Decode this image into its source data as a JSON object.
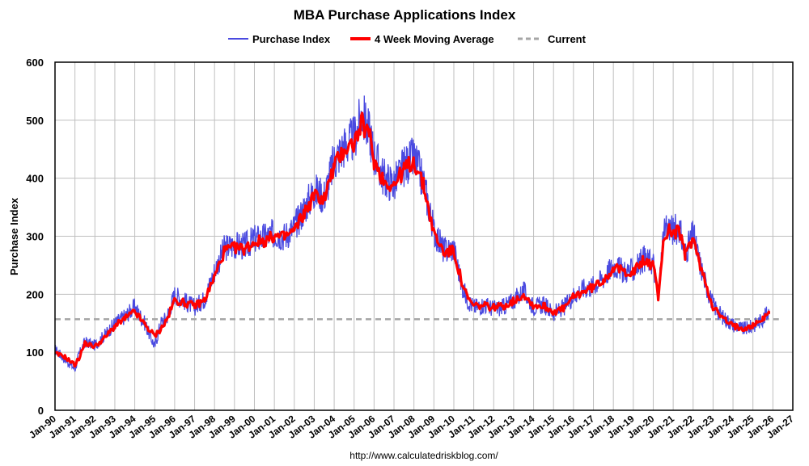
{
  "chart_data": {
    "type": "line",
    "title": "MBA Purchase Applications Index",
    "ylabel": "Purchase Index",
    "xlabel": "",
    "source": "http://www.calculatedriskblog.com/",
    "ylim": [
      0,
      600
    ],
    "yticks": [
      0,
      100,
      200,
      300,
      400,
      500,
      600
    ],
    "xlim": [
      1990,
      2027
    ],
    "xticks": [
      "Jan-90",
      "Jan-91",
      "Jan-92",
      "Jan-93",
      "Jan-94",
      "Jan-95",
      "Jan-96",
      "Jan-97",
      "Jan-98",
      "Jan-99",
      "Jan-00",
      "Jan-01",
      "Jan-02",
      "Jan-03",
      "Jan-04",
      "Jan-05",
      "Jan-06",
      "Jan-07",
      "Jan-08",
      "Jan-09",
      "Jan-10",
      "Jan-11",
      "Jan-12",
      "Jan-13",
      "Jan-14",
      "Jan-15",
      "Jan-16",
      "Jan-17",
      "Jan-18",
      "Jan-19",
      "Jan-20",
      "Jan-21",
      "Jan-22",
      "Jan-23",
      "Jan-24",
      "Jan-25",
      "Jan-26",
      "Jan-27"
    ],
    "grid": true,
    "legend_position": "top",
    "series": [
      {
        "name": "Purchase Index",
        "color": "#4a4ae0",
        "x": [
          1990.0,
          1990.5,
          1991.0,
          1991.2,
          1991.5,
          1992.0,
          1992.5,
          1993.0,
          1993.5,
          1994.0,
          1994.5,
          1995.0,
          1995.3,
          1995.6,
          1996.0,
          1996.5,
          1997.0,
          1997.5,
          1998.0,
          1998.5,
          1999.0,
          1999.5,
          2000.0,
          2000.5,
          2001.0,
          2001.5,
          2002.0,
          2002.5,
          2003.0,
          2003.5,
          2004.0,
          2004.5,
          2005.0,
          2005.4,
          2005.8,
          2006.0,
          2006.5,
          2007.0,
          2007.5,
          2008.0,
          2008.5,
          2009.0,
          2009.5,
          2010.0,
          2010.4,
          2010.7,
          2011.0,
          2011.5,
          2012.0,
          2012.5,
          2013.0,
          2013.5,
          2014.0,
          2014.5,
          2015.0,
          2015.5,
          2016.0,
          2016.5,
          2017.0,
          2017.5,
          2018.0,
          2018.5,
          2019.0,
          2019.5,
          2020.0,
          2020.25,
          2020.5,
          2020.8,
          2021.0,
          2021.3,
          2021.6,
          2022.0,
          2022.3,
          2022.7,
          2023.0,
          2023.5,
          2024.0,
          2024.5,
          2025.0,
          2025.5,
          2025.8
        ],
        "values": [
          105,
          88,
          72,
          95,
          118,
          112,
          130,
          150,
          162,
          178,
          150,
          110,
          150,
          160,
          200,
          188,
          178,
          192,
          240,
          280,
          285,
          282,
          295,
          298,
          305,
          300,
          315,
          348,
          378,
          370,
          430,
          455,
          468,
          510,
          475,
          440,
          400,
          390,
          420,
          435,
          390,
          310,
          275,
          280,
          215,
          190,
          178,
          182,
          175,
          178,
          190,
          205,
          178,
          182,
          168,
          176,
          198,
          210,
          215,
          228,
          250,
          240,
          240,
          262,
          255,
          190,
          300,
          318,
          310,
          315,
          270,
          305,
          258,
          210,
          182,
          160,
          148,
          140,
          145,
          158,
          170
        ]
      },
      {
        "name": "4 Week Moving Average",
        "color": "#ff0000",
        "x": [
          1990.0,
          1990.5,
          1991.0,
          1991.2,
          1991.5,
          1992.0,
          1992.5,
          1993.0,
          1993.5,
          1994.0,
          1994.5,
          1995.0,
          1995.3,
          1995.6,
          1996.0,
          1996.5,
          1997.0,
          1997.5,
          1998.0,
          1998.5,
          1999.0,
          1999.5,
          2000.0,
          2000.5,
          2001.0,
          2001.5,
          2002.0,
          2002.5,
          2003.0,
          2003.5,
          2004.0,
          2004.5,
          2005.0,
          2005.4,
          2005.8,
          2006.0,
          2006.5,
          2007.0,
          2007.5,
          2008.0,
          2008.5,
          2009.0,
          2009.5,
          2010.0,
          2010.4,
          2010.7,
          2011.0,
          2011.5,
          2012.0,
          2012.5,
          2013.0,
          2013.5,
          2014.0,
          2014.5,
          2015.0,
          2015.5,
          2016.0,
          2016.5,
          2017.0,
          2017.5,
          2018.0,
          2018.5,
          2019.0,
          2019.5,
          2020.0,
          2020.25,
          2020.5,
          2020.8,
          2021.0,
          2021.3,
          2021.6,
          2022.0,
          2022.3,
          2022.7,
          2023.0,
          2023.5,
          2024.0,
          2024.5,
          2025.0,
          2025.5,
          2025.8
        ],
        "values": [
          98,
          92,
          78,
          90,
          115,
          110,
          125,
          145,
          158,
          170,
          148,
          128,
          140,
          155,
          190,
          185,
          180,
          190,
          230,
          275,
          280,
          278,
          290,
          292,
          300,
          298,
          310,
          340,
          370,
          365,
          420,
          450,
          460,
          495,
          470,
          430,
          395,
          388,
          415,
          430,
          385,
          305,
          272,
          275,
          220,
          192,
          180,
          180,
          178,
          180,
          188,
          200,
          180,
          180,
          170,
          175,
          195,
          205,
          212,
          225,
          245,
          240,
          238,
          258,
          250,
          195,
          290,
          312,
          305,
          310,
          268,
          298,
          255,
          212,
          178,
          158,
          145,
          142,
          146,
          158,
          166
        ]
      },
      {
        "name": "Current",
        "color": "#a6a6a6",
        "style": "dashed",
        "constant": 157
      }
    ]
  }
}
